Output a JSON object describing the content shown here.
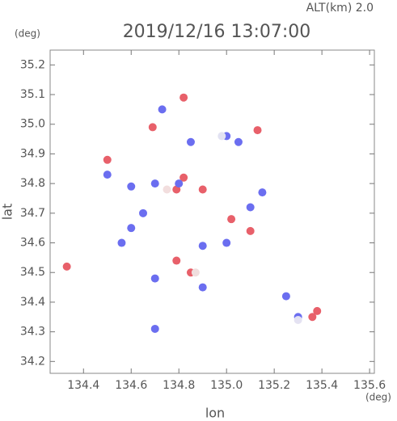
{
  "chart_data": {
    "type": "scatter",
    "title": "2019/12/16 13:07:00",
    "subtitle": "ALT(km) 2.0",
    "y_unit": "(deg)",
    "x_unit": "(deg)",
    "xlabel": "lon",
    "ylabel": "lat",
    "xlim": [
      134.26,
      135.62
    ],
    "ylim": [
      34.16,
      35.25
    ],
    "xticks": [
      134.4,
      134.6,
      134.8,
      {
        "value": 135.0,
        "label": "135.0"
      },
      135.2,
      135.4,
      135.6
    ],
    "yticks": [
      34.2,
      34.3,
      34.4,
      34.5,
      34.6,
      34.7,
      34.8,
      34.9,
      {
        "value": 35.0,
        "label": "35.0"
      },
      35.1,
      35.2
    ],
    "x": [
      134.33,
      134.5,
      134.82,
      135.36,
      135.38,
      134.69,
      134.79,
      134.85,
      135.13,
      134.82,
      134.9,
      134.79,
      135.02,
      135.1,
      134.7,
      134.5,
      134.6,
      134.7,
      134.85,
      135.0,
      135.05,
      135.15,
      135.0,
      134.9,
      135.3,
      134.73,
      134.6,
      134.65,
      134.56,
      134.7,
      135.25,
      134.9,
      134.8,
      135.1,
      135.3,
      134.87,
      134.75,
      134.98
    ],
    "y": [
      34.52,
      34.88,
      34.82,
      34.35,
      34.37,
      34.99,
      34.54,
      34.5,
      34.98,
      35.09,
      34.78,
      34.78,
      34.68,
      34.64,
      34.31,
      34.83,
      34.79,
      34.8,
      34.94,
      34.96,
      34.94,
      34.77,
      34.6,
      34.59,
      34.35,
      35.05,
      34.65,
      34.7,
      34.6,
      34.48,
      34.42,
      34.45,
      34.8,
      34.72,
      34.34,
      34.5,
      34.78,
      34.96
    ],
    "colors": [
      "#e8606a",
      "#e8606a",
      "#e8606a",
      "#e8606a",
      "#e8606a",
      "#e8606a",
      "#e8606a",
      "#e8606a",
      "#e8606a",
      "#e8606a",
      "#e8606a",
      "#e8606a",
      "#e8606a",
      "#e8606a",
      "#6b6ef0",
      "#6b6ef0",
      "#6b6ef0",
      "#6b6ef0",
      "#6b6ef0",
      "#6b6ef0",
      "#6b6ef0",
      "#6b6ef0",
      "#6b6ef0",
      "#6b6ef0",
      "#6b6ef0",
      "#6b6ef0",
      "#6b6ef0",
      "#6b6ef0",
      "#6b6ef0",
      "#6b6ef0",
      "#6b6ef0",
      "#6b6ef0",
      "#6b6ef0",
      "#6b6ef0",
      "#e4e2f2",
      "#f0dede",
      "#f2dede",
      "#e2e2f2"
    ]
  }
}
